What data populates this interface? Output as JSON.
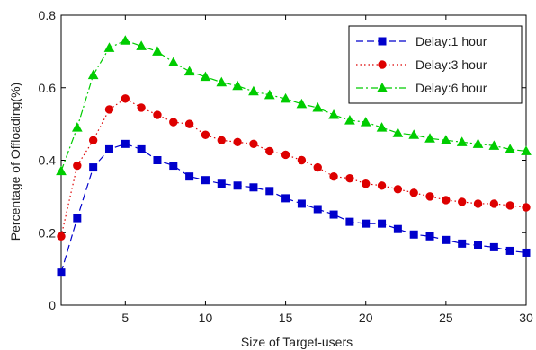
{
  "chart_data": {
    "type": "line",
    "title": "",
    "xlabel": "Size of Target-users",
    "ylabel": "Percentage of Offloading(%)",
    "xlim": [
      1,
      30
    ],
    "ylim": [
      0,
      0.8
    ],
    "xticks": [
      5,
      10,
      15,
      20,
      25,
      30
    ],
    "xtick_labels": [
      "5",
      "10",
      "15",
      "20",
      "25",
      "30"
    ],
    "yticks": [
      0,
      0.2,
      0.4,
      0.6,
      0.8
    ],
    "ytick_labels": [
      "0",
      "0.2",
      "0.4",
      "0.6",
      "0.8"
    ],
    "grid": false,
    "legend_position": "top-right",
    "x": [
      1,
      2,
      3,
      4,
      5,
      6,
      7,
      8,
      9,
      10,
      11,
      12,
      13,
      14,
      15,
      16,
      17,
      18,
      19,
      20,
      21,
      22,
      23,
      24,
      25,
      26,
      27,
      28,
      29,
      30
    ],
    "series": [
      {
        "name": "Delay:1 hour",
        "color": "#0000cc",
        "line_style": "dashed",
        "marker": "square",
        "values": [
          0.09,
          0.24,
          0.38,
          0.43,
          0.445,
          0.43,
          0.4,
          0.385,
          0.355,
          0.345,
          0.335,
          0.33,
          0.325,
          0.315,
          0.295,
          0.28,
          0.265,
          0.25,
          0.23,
          0.225,
          0.225,
          0.21,
          0.195,
          0.19,
          0.18,
          0.17,
          0.165,
          0.16,
          0.15,
          0.145
        ]
      },
      {
        "name": "Delay:3 hour",
        "color": "#dd0000",
        "line_style": "dotted",
        "marker": "circle",
        "values": [
          0.19,
          0.385,
          0.455,
          0.54,
          0.57,
          0.545,
          0.525,
          0.505,
          0.5,
          0.47,
          0.455,
          0.45,
          0.445,
          0.425,
          0.415,
          0.4,
          0.38,
          0.355,
          0.35,
          0.335,
          0.33,
          0.32,
          0.31,
          0.3,
          0.29,
          0.285,
          0.28,
          0.28,
          0.275,
          0.27
        ]
      },
      {
        "name": "Delay:6 hour",
        "color": "#00cc00",
        "line_style": "dashdot",
        "marker": "triangle",
        "values": [
          0.37,
          0.49,
          0.635,
          0.71,
          0.73,
          0.715,
          0.7,
          0.67,
          0.645,
          0.63,
          0.615,
          0.605,
          0.59,
          0.58,
          0.57,
          0.555,
          0.545,
          0.525,
          0.51,
          0.505,
          0.49,
          0.475,
          0.47,
          0.46,
          0.455,
          0.45,
          0.445,
          0.44,
          0.43,
          0.425
        ]
      }
    ]
  }
}
